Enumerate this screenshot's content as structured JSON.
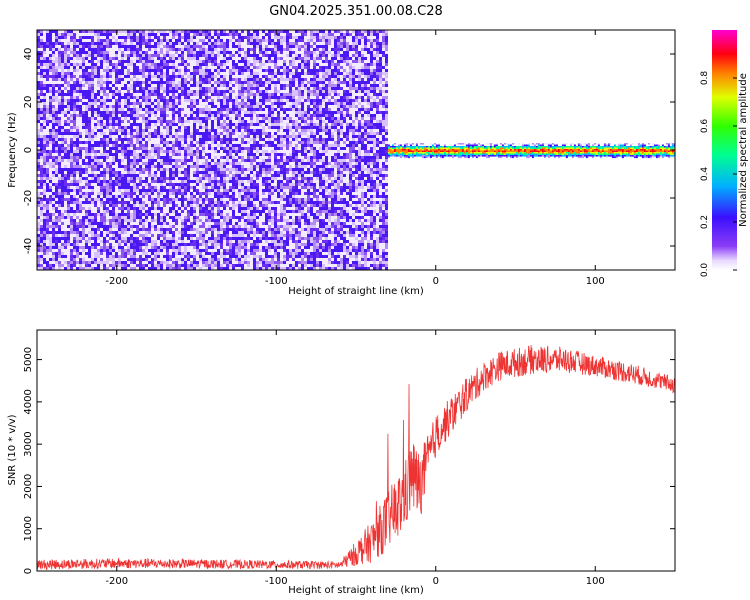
{
  "title": "GN04.2025.351.00.08.C28",
  "colors": {
    "snr_line": "#ee3333",
    "axis": "#000000"
  },
  "chart_data": [
    {
      "type": "heatmap",
      "xlabel": "Height of straight line (km)",
      "ylabel": "Frequency (Hz)",
      "xlim": [
        -250,
        150
      ],
      "ylim": [
        -50,
        50
      ],
      "xticks": [
        -200,
        -100,
        0,
        100
      ],
      "yticks": [
        -40,
        -20,
        0,
        20,
        40
      ],
      "colorbar": {
        "label": "Normalized spectral amplitude",
        "range": [
          0,
          1
        ],
        "ticks": [
          "0.0",
          "0.2",
          "0.4",
          "0.6",
          "0.8"
        ],
        "colormap": "rainbow (purple → blue → cyan → green → yellow → red → magenta)"
      },
      "description_regions": [
        {
          "x_range": [
            -250,
            -30
          ],
          "freq_range": [
            -50,
            50
          ],
          "amplitude": "low (0.0–0.2), noise"
        },
        {
          "x_range": [
            -30,
            150
          ],
          "freq_range": [
            -2,
            2
          ],
          "amplitude": "high (~0.8–0.9) along 0 Hz"
        }
      ]
    },
    {
      "type": "line",
      "xlabel": "Height of straight line (km)",
      "ylabel": "SNR (10 * v/v)",
      "xlim": [
        -250,
        150
      ],
      "ylim": [
        0,
        5700
      ],
      "xticks": [
        -200,
        -100,
        0,
        100
      ],
      "yticks": [
        0,
        1000,
        2000,
        3000,
        4000,
        5000
      ],
      "series": [
        {
          "x": [
            -250,
            -200,
            -150,
            -100,
            -60,
            -40,
            -30,
            -20,
            -15,
            -10,
            0,
            10,
            20,
            30,
            40,
            60,
            80,
            100,
            120,
            140,
            150
          ],
          "y": [
            150,
            180,
            170,
            150,
            140,
            700,
            1200,
            1700,
            2300,
            2000,
            3200,
            3700,
            4200,
            4600,
            4850,
            5000,
            5000,
            4850,
            4700,
            4500,
            4400
          ],
          "noise_amplitude": [
            120,
            120,
            110,
            100,
            90,
            500,
            700,
            800,
            900,
            800,
            500,
            450,
            400,
            350,
            350,
            350,
            300,
            250,
            250,
            200,
            200
          ]
        }
      ]
    }
  ]
}
